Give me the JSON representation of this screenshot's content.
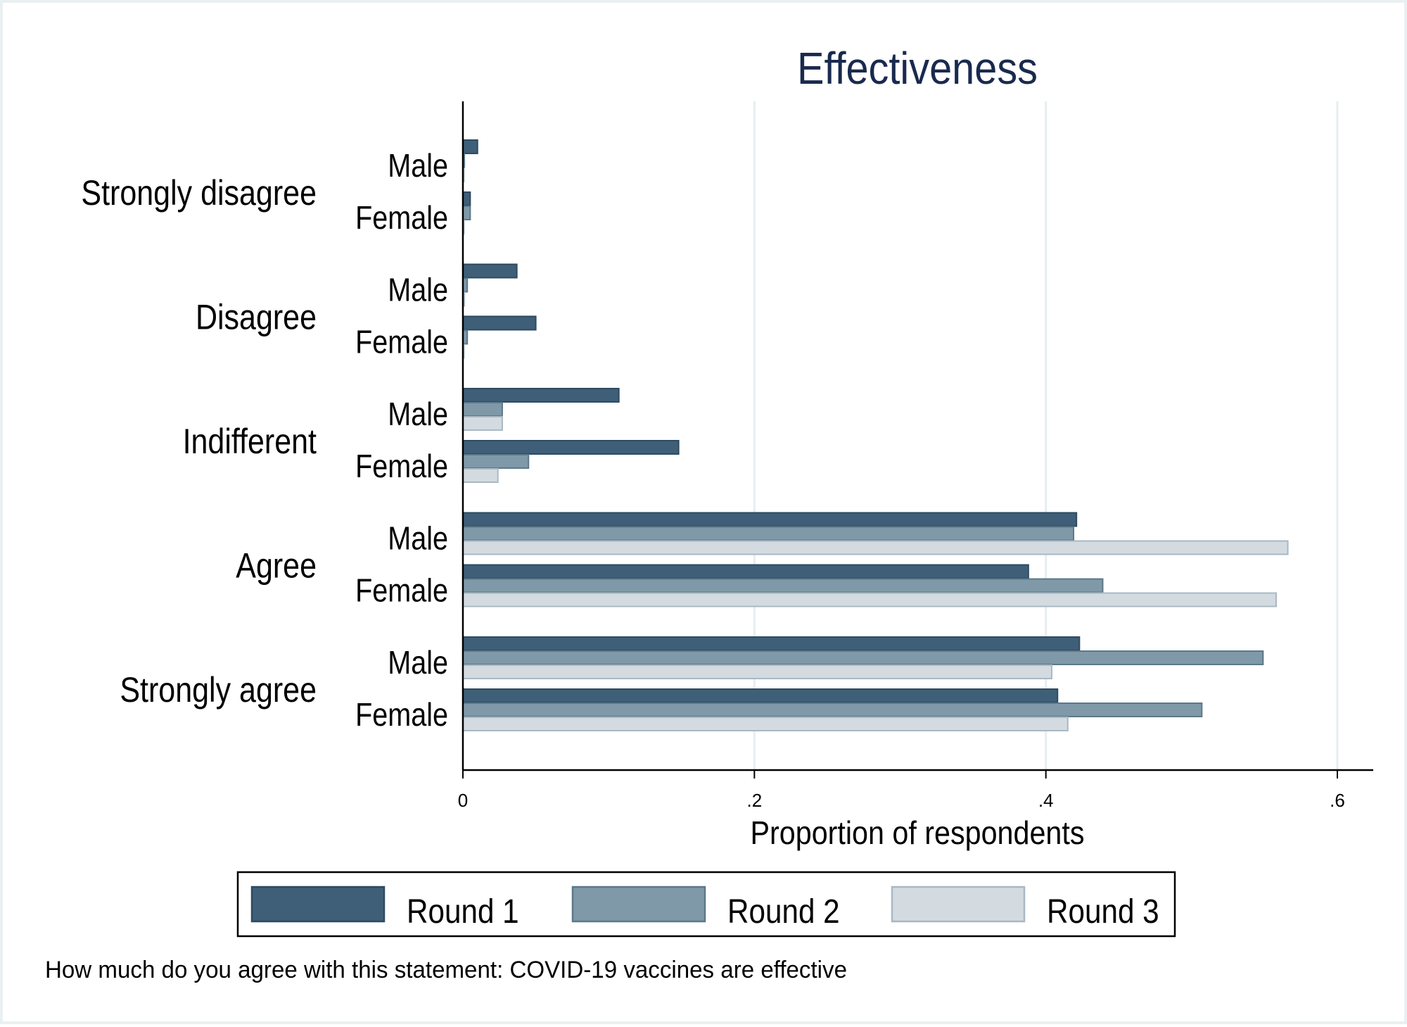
{
  "chart_data": {
    "type": "bar",
    "orientation": "horizontal",
    "title": "Effectiveness",
    "xlabel": "Proportion of respondents",
    "note": "How much do you agree with this statement: COVID-19 vaccines are effective",
    "xlim": [
      0,
      0.62
    ],
    "xticks": [
      {
        "value": 0,
        "label": "0"
      },
      {
        "value": 0.2,
        "label": ".2"
      },
      {
        "value": 0.4,
        "label": ".4"
      },
      {
        "value": 0.6,
        "label": ".6"
      }
    ],
    "grid": true,
    "legend_position": "bottom",
    "groups": [
      "Strongly disagree",
      "Disagree",
      "Indifferent",
      "Agree",
      "Strongly agree"
    ],
    "subgroups": [
      "Male",
      "Female"
    ],
    "series": [
      {
        "name": "Round 1",
        "color": "#3f5f78",
        "values": [
          [
            0.01,
            0.005
          ],
          [
            0.037,
            0.05
          ],
          [
            0.107,
            0.148
          ],
          [
            0.421,
            0.388
          ],
          [
            0.423,
            0.408
          ]
        ]
      },
      {
        "name": "Round 2",
        "color": "#7f99a8",
        "values": [
          [
            0.001,
            0.005
          ],
          [
            0.003,
            0.003
          ],
          [
            0.027,
            0.045
          ],
          [
            0.419,
            0.439
          ],
          [
            0.549,
            0.507
          ]
        ]
      },
      {
        "name": "Round 3",
        "color": "#d3dbe1",
        "values": [
          [
            0.0,
            0.0
          ],
          [
            0.001,
            0.0
          ],
          [
            0.027,
            0.024
          ],
          [
            0.566,
            0.558
          ],
          [
            0.404,
            0.415
          ]
        ]
      }
    ]
  }
}
